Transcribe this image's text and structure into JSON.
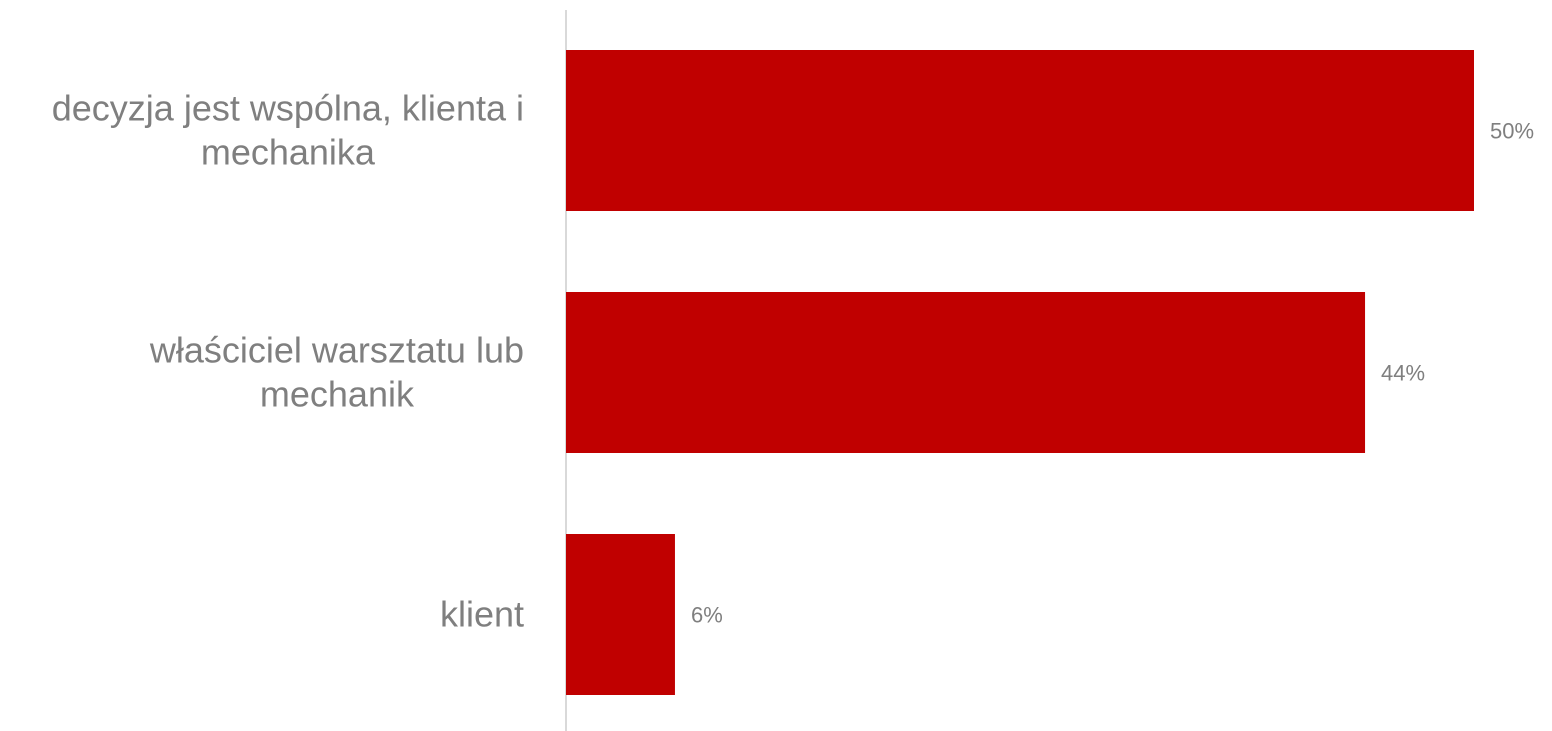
{
  "chart_data": {
    "type": "bar",
    "orientation": "horizontal",
    "title": "",
    "xlabel": "",
    "ylabel": "",
    "categories": [
      [
        "decyzja jest wspólna, klienta i",
        "mechanika"
      ],
      [
        "właściciel warsztatu lub",
        "mechanik"
      ],
      [
        "klient"
      ]
    ],
    "values": [
      50,
      44,
      6
    ],
    "value_labels": [
      "50%",
      "44%",
      "6%"
    ],
    "unit": "%",
    "xlim": [
      0,
      50
    ],
    "grid": false,
    "legend": "none",
    "colors": {
      "bar": "#c00000",
      "axis": "#d9d9d9",
      "text": "#7f7f7f"
    }
  }
}
